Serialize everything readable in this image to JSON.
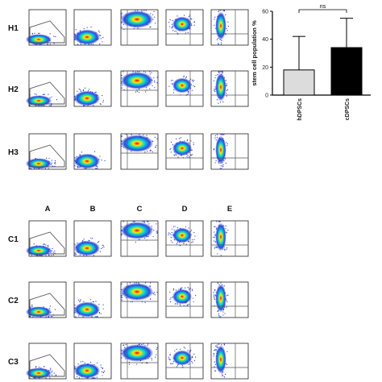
{
  "row_labels": [
    "H1",
    "H2",
    "H3",
    "C1",
    "C2",
    "C3"
  ],
  "column_labels": [
    "A",
    "B",
    "C",
    "D",
    "E"
  ],
  "colors": {
    "density_low": "#1d35d8",
    "density_mid": "#00d4d4",
    "density_high": "#ffe600",
    "density_peak": "#e80000",
    "gate": "#555555",
    "bar_hDPSCs": "#dcdcdc",
    "bar_cDPSCs": "#000000"
  },
  "chart_data": {
    "type": "bar",
    "categories": [
      "hDPSCs",
      "cDPSCs"
    ],
    "values": [
      18,
      34
    ],
    "error_upper": [
      42,
      55
    ],
    "ylabel": "stem cell population %",
    "ylim": [
      0,
      60
    ],
    "yticks": [
      0,
      20,
      40,
      60
    ],
    "significance": "ns",
    "grid": false
  }
}
